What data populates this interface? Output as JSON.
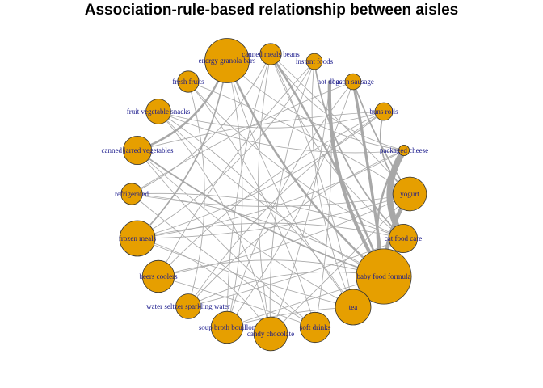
{
  "title": "Association-rule-based relationship between aisles",
  "colors": {
    "node_fill": "#e69f00",
    "node_stroke": "#333333",
    "edge": "#a8a8a8",
    "label": "#1a1a8c"
  },
  "nodes": [
    {
      "id": "canned meals beans",
      "size": 1.2
    },
    {
      "id": "instant foods",
      "size": 0.9
    },
    {
      "id": "bacon sausage",
      "size": 0.9
    },
    {
      "id": "hot dogs",
      "size": 0
    },
    {
      "id": "buns rolls",
      "size": 1.0
    },
    {
      "id": "packaged cheese",
      "size": 0.6
    },
    {
      "id": "yogurt",
      "size": 1.9
    },
    {
      "id": "cat food care",
      "size": 1.6
    },
    {
      "id": "baby food formula",
      "size": 3.1
    },
    {
      "id": "tea",
      "size": 2.0
    },
    {
      "id": "soft drinks",
      "size": 1.7
    },
    {
      "id": "candy chocolate",
      "size": 1.9
    },
    {
      "id": "soup broth bouillon",
      "size": 1.8
    },
    {
      "id": "water seltzer sparkling water",
      "size": 1.4
    },
    {
      "id": "beers coolers",
      "size": 1.8
    },
    {
      "id": "frozen meals",
      "size": 2.0
    },
    {
      "id": "refrigerated",
      "size": 1.2
    },
    {
      "id": "canned jarred vegetables",
      "size": 1.6
    },
    {
      "id": "fruit vegetable snacks",
      "size": 1.4
    },
    {
      "id": "fresh fruits",
      "size": 1.2
    },
    {
      "id": "energy granola bars",
      "size": 2.5
    }
  ],
  "edges": [
    {
      "source": "packaged cheese",
      "target": "cat food care",
      "weight": 9
    },
    {
      "source": "yogurt",
      "target": "baby food formula",
      "weight": 6
    },
    {
      "source": "hot dogs",
      "target": "baby food formula",
      "weight": 5
    },
    {
      "source": "bacon sausage",
      "target": "baby food formula",
      "weight": 4
    },
    {
      "source": "energy granola bars",
      "target": "baby food formula",
      "weight": 3
    },
    {
      "source": "canned meals beans",
      "target": "baby food formula",
      "weight": 3
    },
    {
      "source": "packaged cheese",
      "target": "baby food formula",
      "weight": 3
    },
    {
      "source": "energy granola bars",
      "target": "canned jarred vegetables",
      "weight": 3
    },
    {
      "source": "buns rolls",
      "target": "yogurt",
      "weight": 2
    },
    {
      "source": "bacon sausage",
      "target": "yogurt",
      "weight": 2
    },
    {
      "source": "instant foods",
      "target": "cat food care",
      "weight": 2
    },
    {
      "source": "energy granola bars",
      "target": "frozen meals",
      "weight": 2
    },
    {
      "source": "canned jarred vegetables",
      "target": "baby food formula",
      "weight": 2
    },
    {
      "source": "fresh fruits",
      "target": "yogurt",
      "weight": 1
    },
    {
      "source": "fresh fruits",
      "target": "cat food care",
      "weight": 1
    },
    {
      "source": "fresh fruits",
      "target": "soft drinks",
      "weight": 1
    },
    {
      "source": "fruit vegetable snacks",
      "target": "baby food formula",
      "weight": 1
    },
    {
      "source": "fruit vegetable snacks",
      "target": "candy chocolate",
      "weight": 1
    },
    {
      "source": "fruit vegetable snacks",
      "target": "packaged cheese",
      "weight": 1
    },
    {
      "source": "refrigerated",
      "target": "baby food formula",
      "weight": 1
    },
    {
      "source": "refrigerated",
      "target": "yogurt",
      "weight": 1
    },
    {
      "source": "refrigerated",
      "target": "bacon sausage",
      "weight": 1
    },
    {
      "source": "frozen meals",
      "target": "tea",
      "weight": 1
    },
    {
      "source": "frozen meals",
      "target": "cat food care",
      "weight": 1
    },
    {
      "source": "frozen meals",
      "target": "packaged cheese",
      "weight": 1
    },
    {
      "source": "beers coolers",
      "target": "baby food formula",
      "weight": 1
    },
    {
      "source": "beers coolers",
      "target": "yogurt",
      "weight": 1
    },
    {
      "source": "beers coolers",
      "target": "instant foods",
      "weight": 1
    },
    {
      "source": "water seltzer sparkling water",
      "target": "cat food care",
      "weight": 1
    },
    {
      "source": "water seltzer sparkling water",
      "target": "buns rolls",
      "weight": 1
    },
    {
      "source": "soup broth bouillon",
      "target": "baby food formula",
      "weight": 1
    },
    {
      "source": "soup broth bouillon",
      "target": "canned meals beans",
      "weight": 1
    },
    {
      "source": "soup broth bouillon",
      "target": "bacon sausage",
      "weight": 1
    },
    {
      "source": "candy chocolate",
      "target": "instant foods",
      "weight": 1
    },
    {
      "source": "candy chocolate",
      "target": "yogurt",
      "weight": 1
    },
    {
      "source": "soft drinks",
      "target": "canned jarred vegetables",
      "weight": 1
    },
    {
      "source": "soft drinks",
      "target": "hot dogs",
      "weight": 1
    },
    {
      "source": "tea",
      "target": "energy granola bars",
      "weight": 1
    },
    {
      "source": "tea",
      "target": "fruit vegetable snacks",
      "weight": 1
    },
    {
      "source": "cat food care",
      "target": "canned meals beans",
      "weight": 1
    },
    {
      "source": "cat food care",
      "target": "refrigerated",
      "weight": 1
    },
    {
      "source": "yogurt",
      "target": "frozen meals",
      "weight": 1
    },
    {
      "source": "yogurt",
      "target": "canned meals beans",
      "weight": 1
    },
    {
      "source": "packaged cheese",
      "target": "canned meals beans",
      "weight": 1
    },
    {
      "source": "packaged cheese",
      "target": "water seltzer sparkling water",
      "weight": 1
    },
    {
      "source": "buns rolls",
      "target": "fruit vegetable snacks",
      "weight": 1
    },
    {
      "source": "buns rolls",
      "target": "beers coolers",
      "weight": 1
    },
    {
      "source": "instant foods",
      "target": "frozen meals",
      "weight": 1
    },
    {
      "source": "instant foods",
      "target": "tea",
      "weight": 1
    },
    {
      "source": "canned meals beans",
      "target": "refrigerated",
      "weight": 1
    },
    {
      "source": "canned meals beans",
      "target": "candy chocolate",
      "weight": 1
    },
    {
      "source": "energy granola bars",
      "target": "soup broth bouillon",
      "weight": 1
    },
    {
      "source": "energy granola bars",
      "target": "packaged cheese",
      "weight": 1
    },
    {
      "source": "fresh fruits",
      "target": "water seltzer sparkling water",
      "weight": 1
    },
    {
      "source": "canned jarred vegetables",
      "target": "tea",
      "weight": 1
    },
    {
      "source": "canned jarred vegetables",
      "target": "buns rolls",
      "weight": 1
    },
    {
      "source": "refrigerated",
      "target": "soft drinks",
      "weight": 1
    },
    {
      "source": "frozen meals",
      "target": "candy chocolate",
      "weight": 1
    },
    {
      "source": "beers coolers",
      "target": "soft drinks",
      "weight": 1
    },
    {
      "source": "water seltzer sparkling water",
      "target": "baby food formula",
      "weight": 1
    },
    {
      "source": "soup broth bouillon",
      "target": "tea",
      "weight": 1
    },
    {
      "source": "hot dogs",
      "target": "candy chocolate",
      "weight": 1
    },
    {
      "source": "bacon sausage",
      "target": "soup broth bouillon",
      "weight": 1
    },
    {
      "source": "buns rolls",
      "target": "frozen meals",
      "weight": 1
    },
    {
      "source": "tea",
      "target": "canned meals beans",
      "weight": 1
    }
  ]
}
